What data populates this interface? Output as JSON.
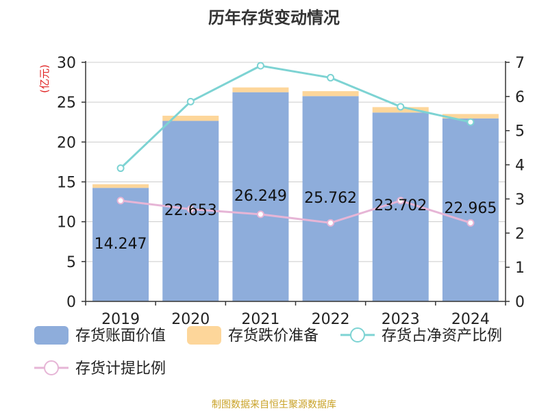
{
  "chart_data": {
    "type": "bar",
    "title": "历年存货变动情况",
    "y_left_unit": "(亿元)",
    "categories": [
      "2019",
      "2020",
      "2021",
      "2022",
      "2023",
      "2024"
    ],
    "y_left_ticks": [
      "0",
      "5",
      "10",
      "15",
      "20",
      "25",
      "30"
    ],
    "y_right_ticks": [
      "0",
      "1",
      "2",
      "3",
      "4",
      "5",
      "6",
      "7"
    ],
    "ylim_left": [
      0,
      30
    ],
    "ylim_right": [
      0,
      7
    ],
    "grid": true,
    "legend_position": "bottom-left",
    "series": [
      {
        "name": "存货账面价值",
        "kind": "bar",
        "axis": "left",
        "color": "#8EADDB",
        "values": [
          14.247,
          22.653,
          26.249,
          25.762,
          23.702,
          22.965
        ],
        "labels": [
          "14.247",
          "22.653",
          "26.249",
          "25.762",
          "23.702",
          "22.965"
        ]
      },
      {
        "name": "存货跌价准备",
        "kind": "bar-stacked",
        "axis": "left",
        "color": "#FDD69A",
        "values": [
          0.45,
          0.65,
          0.6,
          0.62,
          0.68,
          0.55
        ]
      },
      {
        "name": "存货占净资产比例",
        "kind": "line",
        "axis": "right",
        "color": "#7DD3D3",
        "values": [
          3.9,
          5.85,
          6.9,
          6.55,
          5.7,
          5.25
        ]
      },
      {
        "name": "存货计提比例",
        "kind": "line",
        "axis": "right",
        "color": "#E6B5D6",
        "values": [
          2.95,
          2.7,
          2.55,
          2.3,
          2.95,
          2.3
        ]
      }
    ]
  },
  "source": "制图数据来自恒生聚源数据库"
}
